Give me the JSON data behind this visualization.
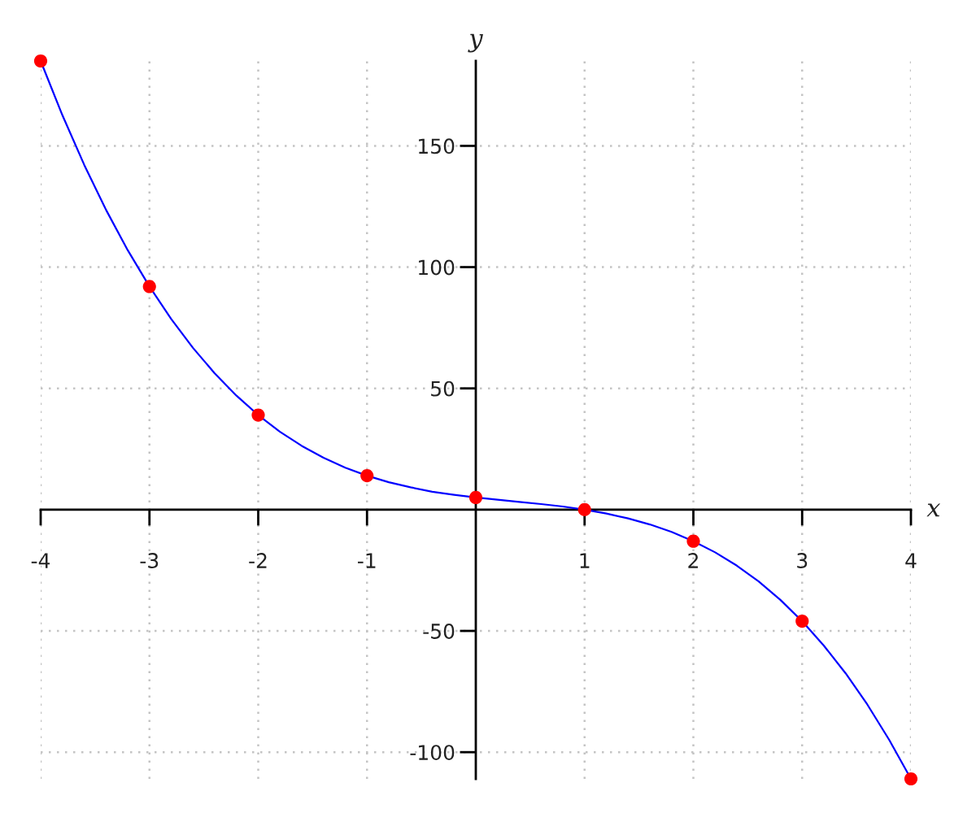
{
  "chart_data": {
    "type": "line",
    "xlabel": "x",
    "ylabel": "y",
    "xlim": [
      -4,
      4
    ],
    "ylim": [
      -111,
      185
    ],
    "xticks": [
      -4,
      -3,
      -2,
      -1,
      1,
      2,
      3,
      4
    ],
    "yticks": [
      -100,
      -50,
      50,
      100,
      150
    ],
    "grid": true,
    "series": [
      {
        "color": "#0000ff",
        "marker": "none",
        "line_style": "solid",
        "x": [
          -4,
          -3.8,
          -3.6,
          -3.4,
          -3.2,
          -3,
          -2.8,
          -2.6,
          -2.4,
          -2.2,
          -2,
          -1.8,
          -1.6,
          -1.4,
          -1.2,
          -1,
          -0.8,
          -0.6,
          -0.4,
          -0.2,
          0,
          0.2,
          0.4,
          0.6,
          0.8,
          1,
          1.2,
          1.4,
          1.6,
          1.8,
          2,
          2.2,
          2.4,
          2.6,
          2.8,
          3,
          3.2,
          3.4,
          3.6,
          3.8,
          4
        ],
        "values": [
          185,
          162.6,
          142.2,
          123.7,
          107,
          92,
          78.6,
          66.7,
          56.2,
          47,
          39,
          32.1,
          26.3,
          21.4,
          17.3,
          14,
          11.3,
          9.2,
          7.4,
          6.1,
          5,
          4.1,
          3.2,
          2.3,
          1.3,
          0,
          -1.6,
          -3.6,
          -6.1,
          -9.2,
          -13,
          -17.6,
          -23.1,
          -29.6,
          -37.2,
          -46,
          -56.1,
          -67.5,
          -80.4,
          -94.9,
          -111
        ]
      },
      {
        "type": "scatter",
        "color": "#ff0000",
        "marker": "circle",
        "x": [
          -4,
          -3,
          -2,
          -1,
          0,
          1,
          2,
          3,
          4
        ],
        "values": [
          185,
          92,
          39,
          14,
          5,
          0,
          -13,
          -46,
          -111
        ]
      }
    ]
  }
}
